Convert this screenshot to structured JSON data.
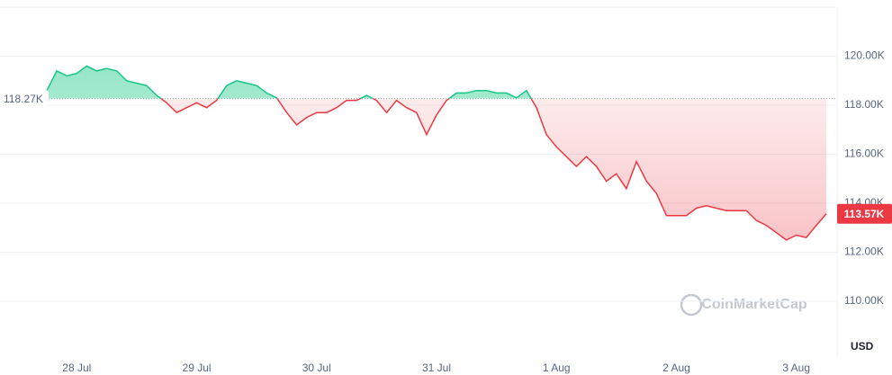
{
  "chart_data": {
    "type": "line",
    "categories": [
      null,
      null,
      null,
      "28 Jul",
      null,
      null,
      null,
      null,
      null,
      null,
      null,
      null,
      null,
      null,
      null,
      "29 Jul",
      null,
      null,
      null,
      null,
      null,
      null,
      null,
      null,
      null,
      null,
      null,
      "30 Jul",
      null,
      null,
      null,
      null,
      null,
      null,
      null,
      null,
      null,
      null,
      null,
      "31 Jul",
      null,
      null,
      null,
      null,
      null,
      null,
      null,
      null,
      null,
      null,
      null,
      "1 Aug",
      null,
      null,
      null,
      null,
      null,
      null,
      null,
      null,
      null,
      null,
      null,
      "2 Aug",
      null,
      null,
      null,
      null,
      null,
      null,
      null,
      null,
      null,
      null,
      null,
      "3 Aug",
      null,
      null,
      null
    ],
    "series": [
      {
        "values": [
          118.6,
          119.4,
          119.2,
          119.3,
          119.6,
          119.4,
          119.5,
          119.4,
          119.0,
          118.9,
          118.8,
          118.4,
          118.1,
          117.7,
          117.9,
          118.1,
          117.9,
          118.2,
          118.8,
          119.0,
          118.9,
          118.8,
          118.5,
          118.3,
          117.7,
          117.2,
          117.5,
          117.7,
          117.7,
          117.9,
          118.2,
          118.2,
          118.4,
          118.2,
          117.7,
          118.2,
          117.9,
          117.7,
          116.8,
          117.6,
          118.2,
          118.5,
          118.5,
          118.6,
          118.6,
          118.5,
          118.5,
          118.3,
          118.6,
          117.9,
          116.8,
          116.3,
          115.9,
          115.5,
          115.9,
          115.5,
          114.9,
          115.2,
          114.6,
          115.7,
          114.9,
          114.4,
          113.5,
          113.5,
          113.5,
          113.8,
          113.9,
          113.8,
          113.7,
          113.7,
          113.7,
          113.3,
          113.1,
          112.8,
          112.5,
          112.7,
          112.6,
          113.1,
          113.57
        ]
      }
    ],
    "up_color": "#16c784",
    "down_color": "#ea3943",
    "reference": {
      "value": 118.27,
      "label": "118.27K"
    },
    "last_price": {
      "value": 113.57,
      "label": "113.57K"
    },
    "ylim": [
      107.8,
      122
    ],
    "yticks": [
      {
        "value": 110,
        "label": "110.00K"
      },
      {
        "value": 112,
        "label": "112.00K"
      },
      {
        "value": 114,
        "label": "114.00K"
      },
      {
        "value": 116,
        "label": "116.00K"
      },
      {
        "value": 118,
        "label": "118.00K"
      },
      {
        "value": 120,
        "label": "120.00K"
      }
    ],
    "y_unit": "USD",
    "watermark": "CoinMarketCap",
    "grid": true
  }
}
